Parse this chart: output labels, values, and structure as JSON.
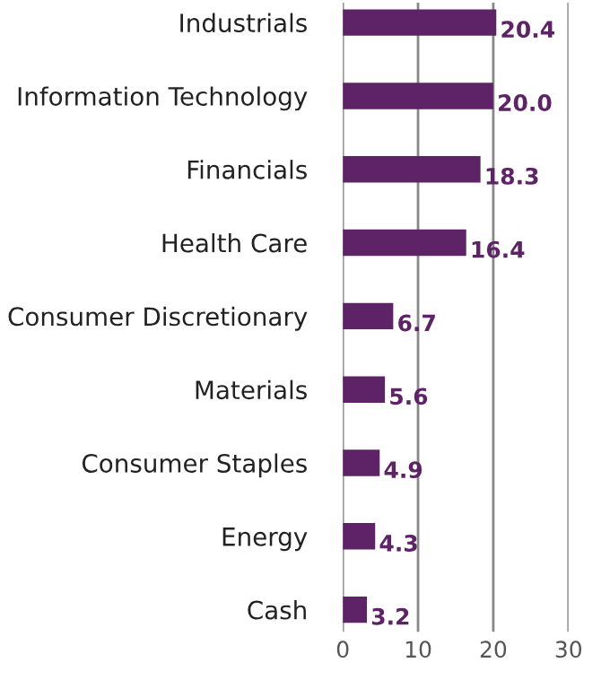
{
  "chart_data": {
    "type": "bar",
    "orientation": "horizontal",
    "categories": [
      "Industrials",
      "Information Technology",
      "Financials",
      "Health Care",
      "Consumer Discretionary",
      "Materials",
      "Consumer Staples",
      "Energy",
      "Cash"
    ],
    "values": [
      20.4,
      20.0,
      18.3,
      16.4,
      6.7,
      5.6,
      4.9,
      4.3,
      3.2
    ],
    "color": "#5e2366",
    "xlim": [
      0,
      30
    ],
    "xticks": [
      0,
      10,
      20,
      30
    ],
    "grid": "x",
    "value_labels": [
      "20.4",
      "20.0",
      "18.3",
      "16.4",
      "6.7",
      "5.6",
      "4.9",
      "4.3",
      "3.2"
    ]
  }
}
